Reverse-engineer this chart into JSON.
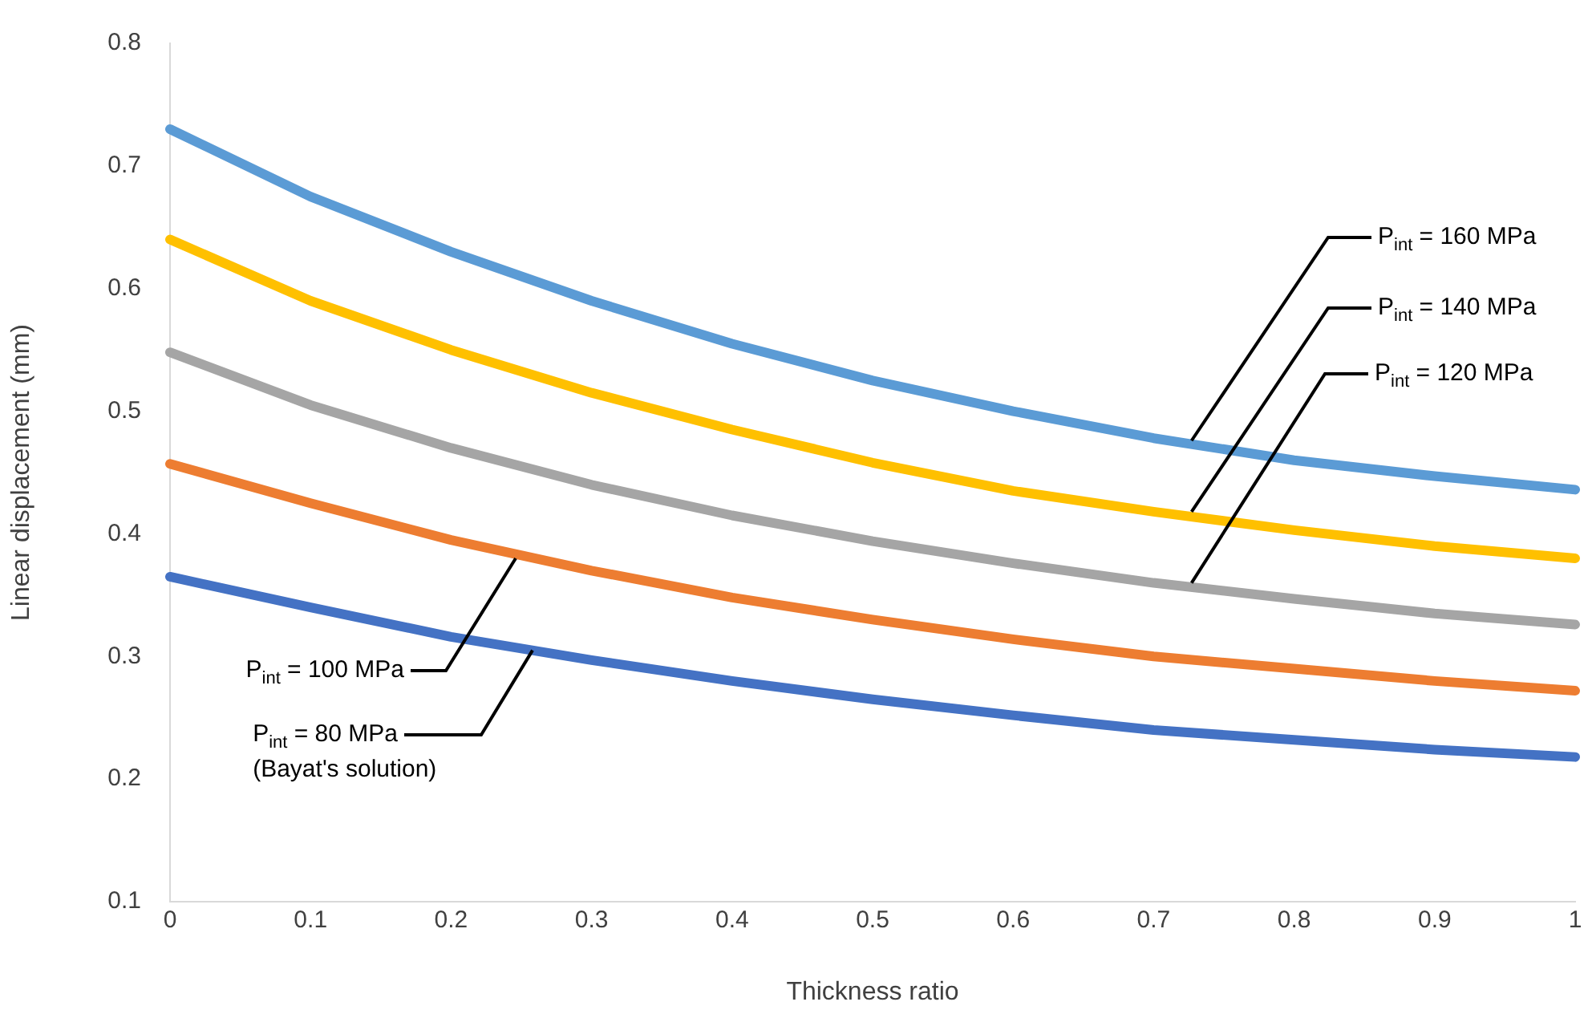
{
  "chart_data": {
    "type": "line",
    "xlabel": "Thickness ratio",
    "ylabel": "Linear displacement (mm)",
    "x": [
      0,
      0.1,
      0.2,
      0.3,
      0.4,
      0.5,
      0.6,
      0.7,
      0.8,
      0.9,
      1
    ],
    "xlim": [
      0,
      1
    ],
    "xticks": [
      0,
      0.1,
      0.2,
      0.3,
      0.4,
      0.5,
      0.6,
      0.7,
      0.8,
      0.9,
      1
    ],
    "ylim": [
      0.1,
      0.8
    ],
    "yticks": [
      0.1,
      0.2,
      0.3,
      0.4,
      0.5,
      0.6,
      0.7,
      0.8
    ],
    "grid": false,
    "legend": false,
    "marker": "none",
    "line_style": "solid",
    "series": [
      {
        "color": "#5b9bd5",
        "values": [
          0.73,
          0.675,
          0.63,
          0.59,
          0.555,
          0.525,
          0.5,
          0.478,
          0.46,
          0.447,
          0.436
        ]
      },
      {
        "color": "#ffc000",
        "values": [
          0.64,
          0.59,
          0.55,
          0.515,
          0.485,
          0.458,
          0.435,
          0.418,
          0.403,
          0.39,
          0.38
        ]
      },
      {
        "color": "#a5a5a5",
        "values": [
          0.548,
          0.505,
          0.47,
          0.44,
          0.415,
          0.394,
          0.376,
          0.36,
          0.347,
          0.335,
          0.326
        ]
      },
      {
        "color": "#ed7d31",
        "values": [
          0.457,
          0.425,
          0.395,
          0.37,
          0.348,
          0.33,
          0.314,
          0.3,
          0.29,
          0.28,
          0.272
        ]
      },
      {
        "color": "#4472c4",
        "values": [
          0.365,
          0.34,
          0.316,
          0.297,
          0.28,
          0.265,
          0.252,
          0.24,
          0.232,
          0.224,
          0.218
        ]
      }
    ],
    "annotations": [
      {
        "text": "P$_{int}$ = 160 MPa",
        "x": 0.727,
        "y": 0.476
      },
      {
        "text": "P$_{int}$ = 140 MPa",
        "x": 0.727,
        "y": 0.418
      },
      {
        "text": "P$_{int}$ = 120 MPa",
        "x": 0.727,
        "y": 0.36
      },
      {
        "text": "P$_{int}$ = 100 MPa",
        "x": 0.246,
        "y": 0.38
      },
      {
        "text": "P$_{int}$ = 80 MPa\n(Bayat's solution)",
        "x": 0.258,
        "y": 0.305
      }
    ]
  }
}
